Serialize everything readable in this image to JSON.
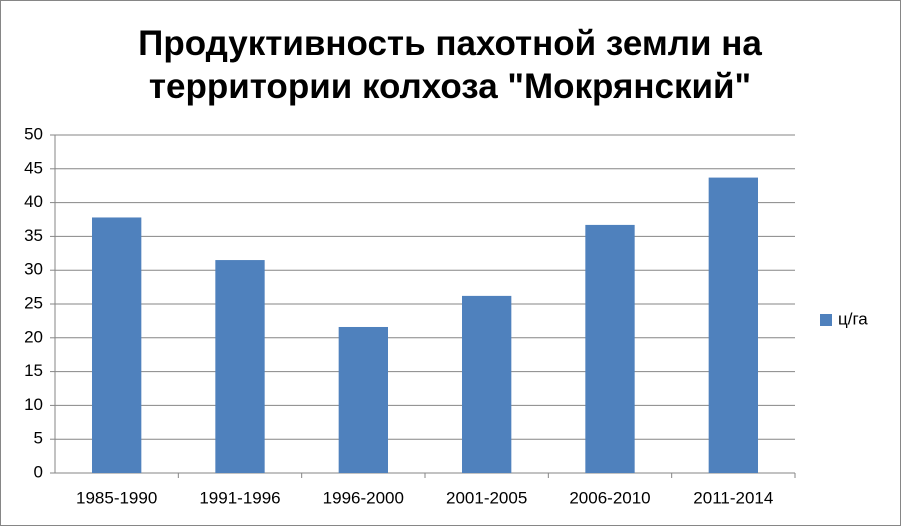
{
  "chart_data": {
    "type": "bar",
    "title": "Продуктивность пахотной земли на территории колхоза \"Мокрянский\"",
    "categories": [
      "1985-1990",
      "1991-1996",
      "1996-2000",
      "2001-2005",
      "2006-2010",
      "2011-2014"
    ],
    "series": [
      {
        "name": "ц/га",
        "color": "#4f81bd",
        "values": [
          37.8,
          31.5,
          21.6,
          26.2,
          36.7,
          43.7
        ]
      }
    ],
    "ylim": [
      0,
      50
    ],
    "yticks": [
      0,
      5,
      10,
      15,
      20,
      25,
      30,
      35,
      40,
      45,
      50
    ],
    "grid": true,
    "legend": "right"
  }
}
